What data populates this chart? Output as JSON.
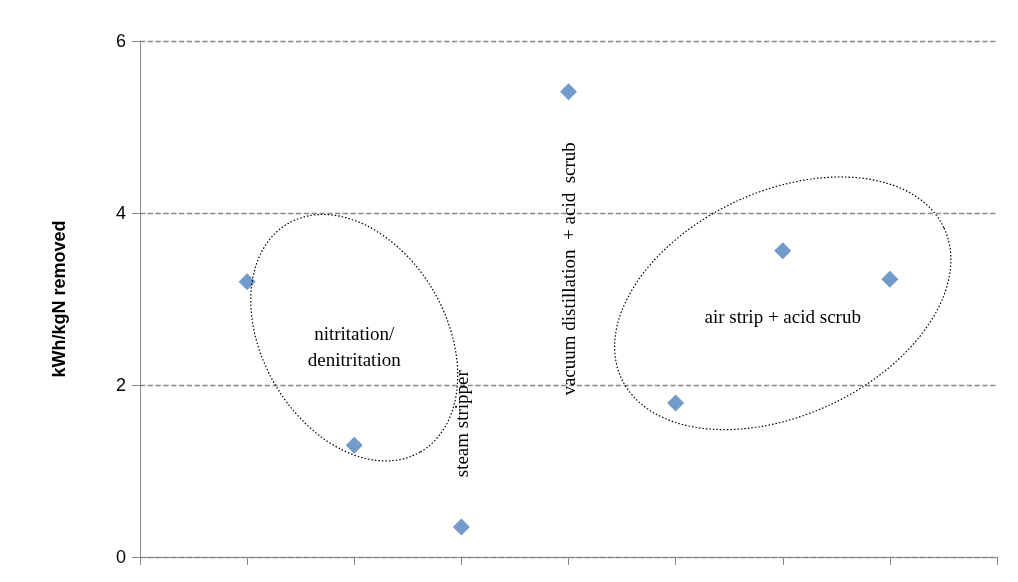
{
  "chart_data": {
    "type": "scatter",
    "ylabel": "kWh/kgN removed",
    "categories": [
      null,
      null,
      null,
      null,
      null,
      null,
      null,
      null,
      null
    ],
    "values": [
      null,
      3.2,
      1.3,
      0.35,
      5.41,
      1.79,
      3.56,
      3.23,
      null
    ],
    "color": "#4f81bd",
    "marker": "diamond",
    "ylim": [
      0,
      6
    ],
    "yticks": [
      0,
      2,
      4,
      6
    ],
    "grid": "y",
    "tick_labels": "y",
    "annotations": [
      "nitritation/\ndenitritation",
      "air strip + acid scrub",
      "steam stripper",
      "vacuum distillation  + acid  scrub"
    ]
  }
}
